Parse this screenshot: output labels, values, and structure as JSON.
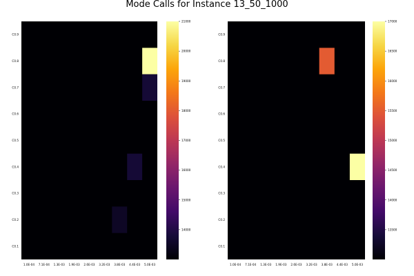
{
  "title": "Mode Calls for Instance 13_50_1000",
  "chart_data": [
    {
      "type": "heatmap",
      "x_ticks": [
        "1.0E-04",
        "7.1E-04",
        "1.3E-03",
        "1.9E-03",
        "2.6E-03",
        "3.2E-03",
        "3.8E-03",
        "4.4E-03",
        "5.0E-03"
      ],
      "y_ticks": [
        "C0.1",
        "C0.2",
        "C0.3",
        "C0.4",
        "C0.5",
        "C0.6",
        "C0.7",
        "C0.8",
        "C0.9"
      ],
      "colorbar_ticks": [
        14000,
        15000,
        16000,
        17000,
        18000,
        19000,
        20000,
        21000
      ],
      "colorbar_range": [
        13000,
        21000
      ],
      "colormap": "inferno",
      "background_value": 13000,
      "cells": [
        {
          "x": "5.0E-03",
          "y": "C0.8",
          "value": 21000
        },
        {
          "x": "5.0E-03",
          "y": "C0.7",
          "value": 13750
        },
        {
          "x": "4.4E-03",
          "y": "C0.4",
          "value": 13750
        },
        {
          "x": "3.8E-03",
          "y": "C0.2",
          "value": 13500
        }
      ]
    },
    {
      "type": "heatmap",
      "x_ticks": [
        "1.0E-04",
        "7.1E-04",
        "1.3E-03",
        "1.9E-03",
        "2.6E-03",
        "3.2E-03",
        "3.8E-03",
        "4.4E-03",
        "5.0E-03"
      ],
      "y_ticks": [
        "C0.1",
        "C0.2",
        "C0.3",
        "C0.4",
        "C0.5",
        "C0.6",
        "C0.7",
        "C0.8",
        "C0.9"
      ],
      "colorbar_ticks": [
        13500,
        14000,
        14500,
        15000,
        15500,
        16000,
        16500,
        17000
      ],
      "colorbar_range": [
        13000,
        17000
      ],
      "colormap": "inferno",
      "background_value": 13000,
      "cells": [
        {
          "x": "3.8E-03",
          "y": "C0.8",
          "value": 15500
        },
        {
          "x": "5.0E-03",
          "y": "C0.4",
          "value": 17000
        }
      ]
    }
  ]
}
